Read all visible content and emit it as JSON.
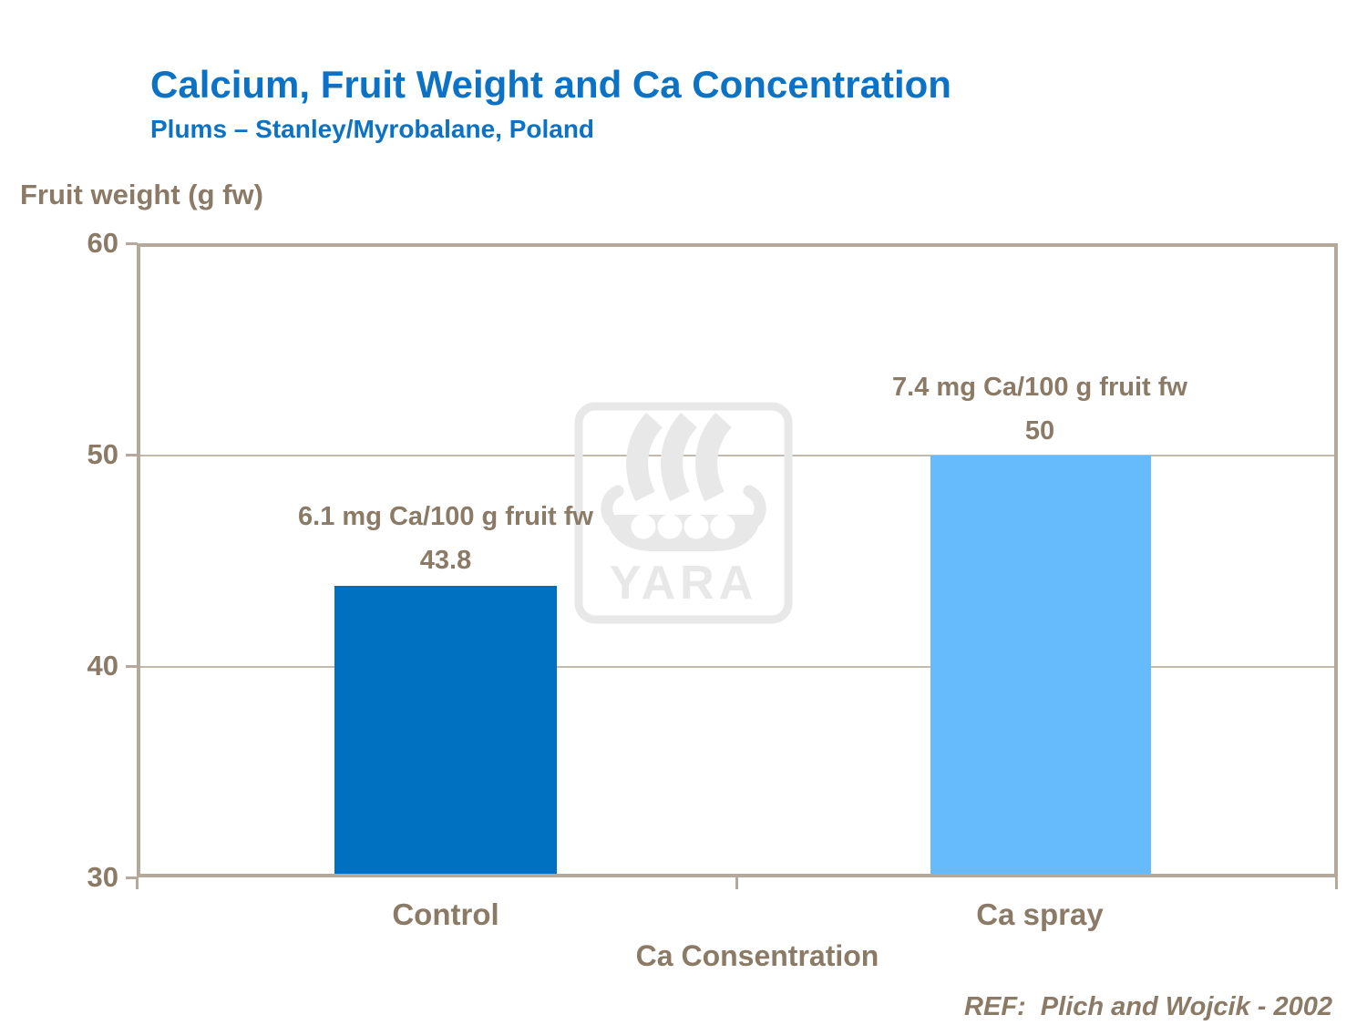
{
  "header": {
    "title": "Calcium, Fruit Weight and Ca Concentration",
    "subtitle": "Plums – Stanley/Myrobalane, Poland"
  },
  "footer": {
    "reference": "REF:  Plich and Wojcik - 2002"
  },
  "watermark": {
    "label": "YARA"
  },
  "colors": {
    "title_blue": "#0c72c5",
    "text_brown": "#8b7a65",
    "frame_tan": "#b4a99b",
    "grid_tan": "#c4baab",
    "bar_dark_blue": "#0070c0",
    "bar_light_blue": "#66bbfc",
    "watermark_gray": "#e8e8e8"
  },
  "chart_data": {
    "type": "bar",
    "title": "Calcium, Fruit Weight and Ca Concentration",
    "subtitle": "Plums – Stanley/Myrobalane, Poland",
    "categories": [
      "Control",
      "Ca spray"
    ],
    "values": [
      43.8,
      50
    ],
    "value_labels": [
      "43.8",
      "50"
    ],
    "annotations": [
      "6.1 mg Ca/100 g fruit fw",
      "7.4 mg Ca/100 g fruit fw"
    ],
    "bar_colors": [
      "#0070c0",
      "#66bbfc"
    ],
    "xlabel": "Ca Consentration",
    "ylabel": "Fruit weight (g fw)",
    "ylim": [
      30,
      60
    ],
    "yticks": [
      60,
      50,
      40,
      30
    ],
    "grid": "horizontal gridlines at 40 and 50",
    "legend": "none"
  }
}
